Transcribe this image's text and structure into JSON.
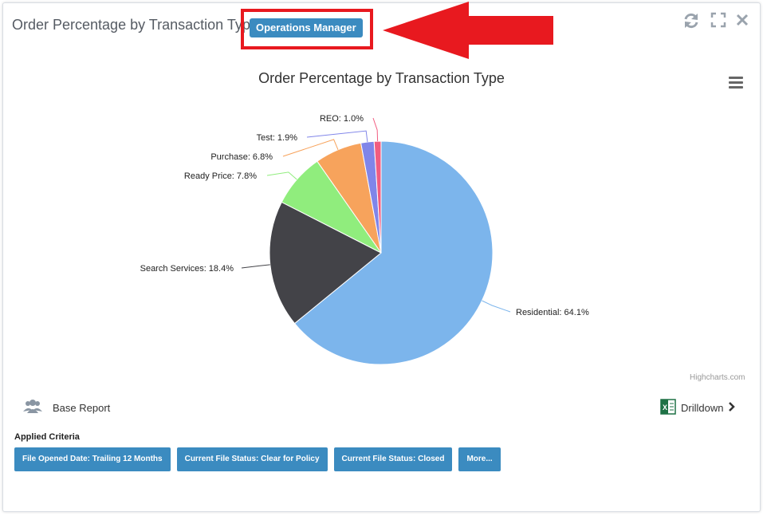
{
  "header": {
    "title": "Order Percentage by Transaction Type",
    "role_badge": "Operations Manager",
    "icons": [
      "refresh-icon",
      "fullscreen-icon",
      "close-icon"
    ]
  },
  "chart_data": {
    "type": "pie",
    "title": "Order Percentage by Transaction Type",
    "slices": [
      {
        "name": "Residential",
        "value": 64.1,
        "color": "#7cb5ec"
      },
      {
        "name": "Search Services",
        "value": 18.4,
        "color": "#434348"
      },
      {
        "name": "Ready Price",
        "value": 7.8,
        "color": "#90ed7d"
      },
      {
        "name": "Purchase",
        "value": 6.8,
        "color": "#f7a35c"
      },
      {
        "name": "Test",
        "value": 1.9,
        "color": "#8085e9"
      },
      {
        "name": "REO",
        "value": 1.0,
        "color": "#f15c80"
      }
    ],
    "labels": [
      "Residential: 64.1%",
      "Search Services: 18.4%",
      "Ready Price: 7.8%",
      "Purchase: 6.8%",
      "Test: 1.9%",
      "REO: 1.0%"
    ]
  },
  "credits": "Highcharts.com",
  "footer": {
    "base_report_label": "Base Report",
    "drilldown_label": "Drilldown",
    "criteria_heading": "Applied Criteria",
    "criteria": [
      "File Opened Date: Trailing 12 Months",
      "Current File Status: Clear for Policy",
      "Current File Status: Closed",
      "More..."
    ]
  },
  "colors": {
    "accent": "#3b8bc0",
    "highlight": "#e8191f"
  }
}
